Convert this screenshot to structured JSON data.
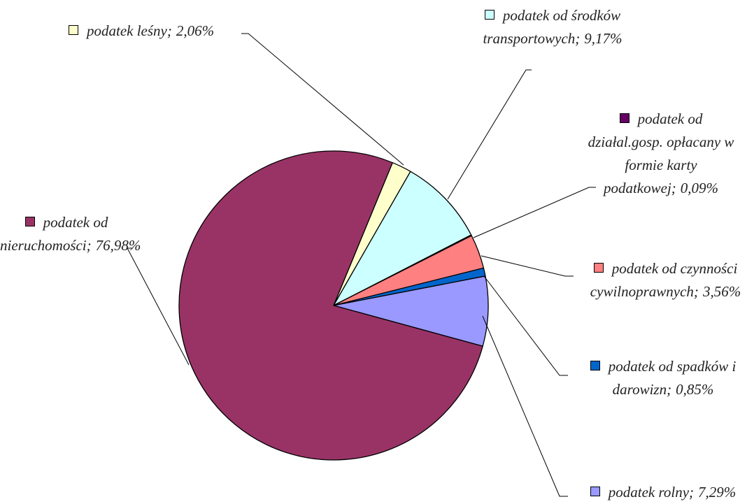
{
  "chart_data": {
    "type": "pie",
    "categories": [
      "podatek leśny;",
      "podatek od środków transportowych;",
      "podatek od działal.gosp. opłacany w formie karty podatkowej;",
      "podatek od czynności cywilnoprawnych;",
      "podatek od spadków i darowizn;",
      "podatek rolny;",
      "podatek od nieruchomości;"
    ],
    "values": [
      2.06,
      9.17,
      0.09,
      3.56,
      0.85,
      7.29,
      76.98
    ],
    "value_labels": [
      "2,06%",
      "9,17%",
      "0,09%",
      "3,56%",
      "0,85%",
      "7,29%",
      "76,98%"
    ],
    "colors": [
      "#ffffcc",
      "#ccffff",
      "#660066",
      "#ff8080",
      "#0066cc",
      "#9999ff",
      "#993366"
    ]
  }
}
